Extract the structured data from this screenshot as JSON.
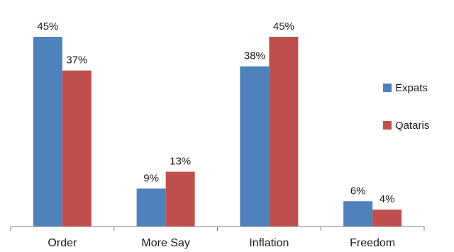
{
  "chart_data": {
    "type": "bar",
    "categories": [
      "Order",
      "More Say",
      "Inflation",
      "Freedom"
    ],
    "series": [
      {
        "name": "Expats",
        "values": [
          45,
          9,
          38,
          6
        ],
        "labels": [
          "45%",
          "9%",
          "38%",
          "6%"
        ],
        "color": "#4f81bd"
      },
      {
        "name": "Qataris",
        "values": [
          37,
          13,
          45,
          4
        ],
        "labels": [
          "37%",
          "13%",
          "45%",
          "4%"
        ],
        "color": "#c0504d"
      }
    ],
    "ylim": [
      0,
      45
    ],
    "unit": "%",
    "grid": false,
    "legend_position": "right"
  }
}
